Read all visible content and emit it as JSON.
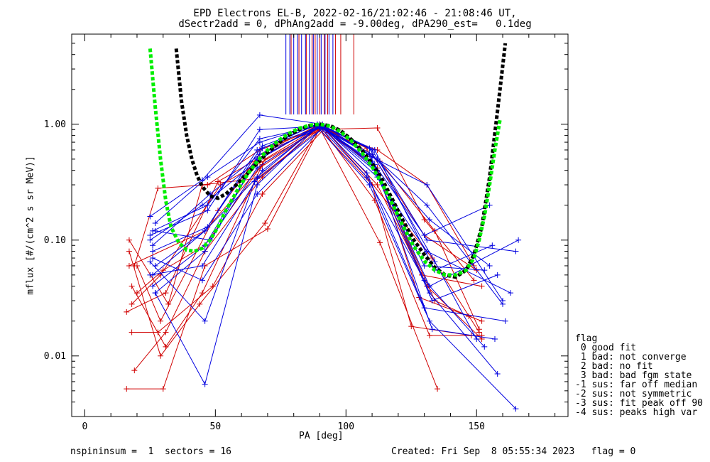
{
  "chart_data": {
    "type": "line",
    "title": "EPD Electrons EL-B, 2022-02-16/21:02:46 - 21:08:46 UT,",
    "subtitle": "dSectr2add = 0, dPhAng2add = -9.00deg, dPA290_est=   0.1deg",
    "xlabel": "PA [deg]",
    "ylabel": "mflux [#/(cm^2 s sr MeV)]",
    "xlim": [
      -5,
      185
    ],
    "ylim": [
      0.003,
      6
    ],
    "yscale": "log",
    "x_ticks": [
      0,
      50,
      100,
      150
    ],
    "y_ticks": [
      0.01,
      0.1,
      1.0
    ],
    "y_tick_labels": [
      "0.01",
      "0.10",
      "1.00"
    ],
    "grid": false,
    "colors": {
      "red": "#d00000",
      "blue": "#0000e0",
      "black": "#000000",
      "green": "#00ee00"
    },
    "series": [
      {
        "color": "red",
        "x": [
          17,
          46,
          68,
          90,
          112,
          128,
          152
        ],
        "y": [
          0.06,
          0.12,
          0.45,
          0.95,
          0.42,
          0.032,
          0.02
        ]
      },
      {
        "color": "red",
        "x": [
          18,
          29,
          52,
          90,
          110,
          125,
          148
        ],
        "y": [
          0.028,
          0.05,
          0.3,
          0.9,
          0.3,
          0.018,
          0.015
        ]
      },
      {
        "color": "red",
        "x": [
          16,
          30,
          46,
          70,
          90,
          113,
          135
        ],
        "y": [
          0.0052,
          0.0052,
          0.06,
          0.125,
          0.92,
          0.095,
          0.0052
        ]
      },
      {
        "color": "red",
        "x": [
          19,
          31,
          46,
          68,
          90,
          110,
          131,
          152
        ],
        "y": [
          0.0075,
          0.016,
          0.08,
          0.35,
          0.98,
          0.45,
          0.04,
          0.014
        ]
      },
      {
        "color": "red",
        "x": [
          20,
          29,
          51,
          67,
          90,
          108,
          134,
          147
        ],
        "y": [
          0.06,
          0.02,
          0.18,
          0.55,
          1.0,
          0.62,
          0.03,
          0.022
        ]
      },
      {
        "color": "red",
        "x": [
          17,
          32,
          45,
          66,
          91,
          112,
          129,
          152
        ],
        "y": [
          0.1,
          0.028,
          0.3,
          0.34,
          0.95,
          0.3,
          0.05,
          0.04
        ]
      },
      {
        "color": "red",
        "x": [
          18,
          31,
          45,
          69,
          88,
          112,
          130,
          149
        ],
        "y": [
          0.04,
          0.012,
          0.035,
          0.5,
          0.9,
          0.93,
          0.15,
          0.045
        ]
      },
      {
        "color": "red",
        "x": [
          18,
          28,
          49,
          68,
          92,
          113,
          134,
          151
        ],
        "y": [
          0.016,
          0.016,
          0.04,
          0.25,
          0.93,
          0.48,
          0.12,
          0.017
        ]
      },
      {
        "color": "red",
        "x": [
          17,
          29,
          44,
          69,
          90,
          111,
          132,
          152
        ],
        "y": [
          0.08,
          0.01,
          0.028,
          0.14,
          0.97,
          0.22,
          0.015,
          0.015
        ]
      },
      {
        "color": "red",
        "x": [
          16,
          31,
          51,
          66,
          90,
          110,
          130,
          150
        ],
        "y": [
          0.024,
          0.035,
          0.32,
          0.5,
          0.99,
          0.55,
          0.11,
          0.055
        ]
      },
      {
        "color": "red",
        "x": [
          19,
          28,
          47,
          67,
          91,
          108,
          133,
          151
        ],
        "y": [
          0.06,
          0.28,
          0.3,
          0.6,
          0.95,
          0.35,
          0.07,
          0.016
        ]
      },
      {
        "color": "red",
        "x": [
          20,
          30,
          46,
          67,
          89,
          112,
          131,
          149
        ],
        "y": [
          0.035,
          0.055,
          0.09,
          0.42,
          0.9,
          0.6,
          0.3,
          0.06
        ]
      },
      {
        "color": "blue",
        "x": [
          25,
          45,
          67,
          90,
          112,
          132,
          158
        ],
        "y": [
          0.1,
          0.2,
          0.5,
          1.0,
          0.4,
          0.035,
          0.007
        ]
      },
      {
        "color": "blue",
        "x": [
          26,
          46,
          66,
          91,
          110,
          130,
          153
        ],
        "y": [
          0.05,
          0.12,
          0.6,
          0.97,
          0.45,
          0.06,
          0.055
        ]
      },
      {
        "color": "blue",
        "x": [
          27,
          46,
          66,
          89,
          109,
          132,
          165
        ],
        "y": [
          0.035,
          0.0057,
          0.3,
          0.95,
          0.3,
          0.02,
          0.0035
        ]
      },
      {
        "color": "blue",
        "x": [
          25,
          45,
          67,
          91,
          110,
          131,
          160
        ],
        "y": [
          0.16,
          0.33,
          1.2,
          1.0,
          0.52,
          0.3,
          0.03
        ]
      },
      {
        "color": "blue",
        "x": [
          26,
          47,
          68,
          90,
          111,
          134,
          156
        ],
        "y": [
          0.08,
          0.13,
          0.65,
          1.0,
          0.6,
          0.055,
          0.09
        ]
      },
      {
        "color": "blue",
        "x": [
          27,
          48,
          66,
          90,
          108,
          130,
          153
        ],
        "y": [
          0.12,
          0.1,
          0.42,
          0.95,
          0.35,
          0.045,
          0.012
        ]
      },
      {
        "color": "blue",
        "x": [
          25,
          46,
          65,
          91,
          112,
          131,
          160
        ],
        "y": [
          0.065,
          0.02,
          0.32,
          0.92,
          0.5,
          0.2,
          0.028
        ]
      },
      {
        "color": "blue",
        "x": [
          26,
          46,
          66,
          90,
          109,
          132,
          166
        ],
        "y": [
          0.04,
          0.09,
          0.5,
          0.97,
          0.55,
          0.04,
          0.1
        ]
      },
      {
        "color": "blue",
        "x": [
          27,
          47,
          67,
          89,
          110,
          130,
          155
        ],
        "y": [
          0.14,
          0.35,
          0.7,
          1.0,
          0.48,
          0.11,
          0.2
        ]
      },
      {
        "color": "blue",
        "x": [
          25,
          45,
          68,
          90,
          111,
          133,
          158
        ],
        "y": [
          0.05,
          0.06,
          0.4,
          0.98,
          0.4,
          0.03,
          0.05
        ]
      },
      {
        "color": "blue",
        "x": [
          26,
          48,
          67,
          91,
          112,
          131,
          163
        ],
        "y": [
          0.09,
          0.25,
          0.55,
          0.95,
          0.35,
          0.08,
          0.035
        ]
      },
      {
        "color": "blue",
        "x": [
          27,
          46,
          66,
          90,
          109,
          134,
          150
        ],
        "y": [
          0.06,
          0.12,
          0.35,
          1.0,
          0.62,
          0.065,
          0.014
        ]
      },
      {
        "color": "blue",
        "x": [
          25,
          47,
          67,
          90,
          110,
          132,
          155
        ],
        "y": [
          0.11,
          0.18,
          0.9,
          0.96,
          0.55,
          0.15,
          0.06
        ]
      },
      {
        "color": "blue",
        "x": [
          26,
          45,
          66,
          91,
          108,
          130,
          161
        ],
        "y": [
          0.07,
          0.045,
          0.25,
          0.93,
          0.38,
          0.026,
          0.02
        ]
      },
      {
        "color": "blue",
        "x": [
          27,
          46,
          68,
          89,
          111,
          133,
          157
        ],
        "y": [
          0.035,
          0.08,
          0.62,
          1.0,
          0.45,
          0.017,
          0.014
        ]
      },
      {
        "color": "blue",
        "x": [
          26,
          47,
          67,
          90,
          110,
          131,
          165
        ],
        "y": [
          0.12,
          0.2,
          0.75,
          0.98,
          0.6,
          0.1,
          0.08
        ]
      }
    ],
    "upper_sticks": [
      {
        "color": "blue",
        "x": [
          77,
          78.5,
          80,
          81.5,
          83,
          84.5,
          86,
          87.5,
          89,
          90.5,
          92,
          93.5,
          95
        ]
      },
      {
        "color": "red",
        "x": [
          79,
          82,
          84.8,
          87,
          88.2,
          90,
          91.7,
          93,
          96,
          98,
          103
        ]
      }
    ],
    "fit_curves": [
      {
        "color": "black",
        "x": [
          35,
          37,
          39,
          41,
          43,
          45,
          48,
          51,
          54,
          58,
          62,
          66,
          70,
          74,
          78,
          82,
          86,
          90,
          94,
          98,
          102,
          106,
          110,
          114,
          118,
          122,
          126,
          130,
          134,
          138,
          142,
          146,
          149,
          152,
          155,
          158,
          161
        ],
        "y": [
          4.5,
          1.6,
          0.8,
          0.5,
          0.36,
          0.29,
          0.24,
          0.23,
          0.25,
          0.3,
          0.37,
          0.46,
          0.57,
          0.68,
          0.8,
          0.9,
          0.97,
          1.0,
          0.97,
          0.88,
          0.74,
          0.6,
          0.46,
          0.33,
          0.22,
          0.145,
          0.1,
          0.075,
          0.058,
          0.05,
          0.048,
          0.055,
          0.075,
          0.13,
          0.35,
          1.3,
          5.0
        ]
      },
      {
        "color": "green",
        "x": [
          25,
          27,
          29,
          31,
          33,
          36,
          39,
          42,
          45,
          48,
          51,
          54,
          58,
          62,
          66,
          70,
          74,
          78,
          82,
          86,
          90,
          94,
          98,
          102,
          106,
          110,
          114,
          118,
          122,
          126,
          130,
          134,
          138,
          142,
          146,
          149,
          151,
          153,
          155,
          157,
          159
        ],
        "y": [
          4.5,
          1.4,
          0.5,
          0.22,
          0.13,
          0.095,
          0.082,
          0.08,
          0.085,
          0.1,
          0.13,
          0.18,
          0.26,
          0.36,
          0.48,
          0.6,
          0.72,
          0.83,
          0.92,
          0.98,
          1.0,
          0.96,
          0.86,
          0.72,
          0.57,
          0.43,
          0.3,
          0.2,
          0.13,
          0.088,
          0.066,
          0.055,
          0.05,
          0.05,
          0.055,
          0.07,
          0.1,
          0.16,
          0.3,
          0.6,
          1.1
        ]
      }
    ],
    "legend": {
      "placement": "bottom-right",
      "title": "flag",
      "entries": [
        " 0 good fit",
        " 1 bad: not converge",
        " 2 bad: no fit",
        " 3 bad: bad fgm state",
        "-1 sus: far off median",
        "-2 sus: not symmetric",
        "-3 sus: fit peak off 90",
        "-4 sus: peaks high var"
      ]
    }
  },
  "footer": {
    "left": "nspininsum =  1  sectors = 16",
    "right": "Created: Fri Sep  8 05:55:34 2023   flag = 0"
  }
}
